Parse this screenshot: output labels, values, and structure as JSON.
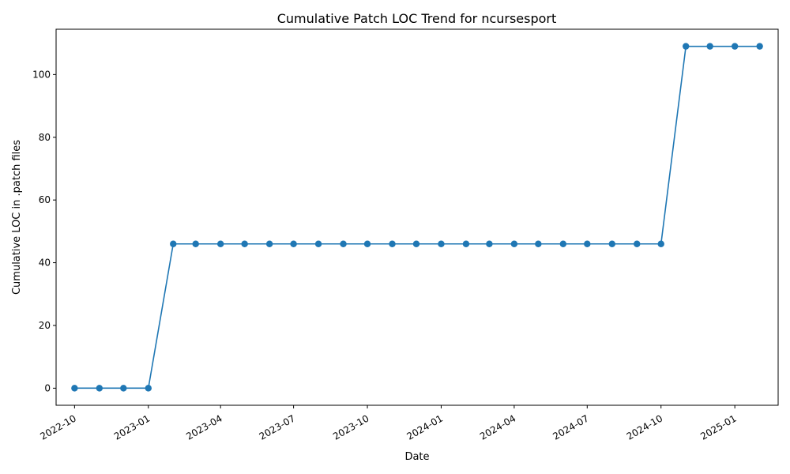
{
  "chart_data": {
    "type": "line",
    "title": "Cumulative Patch LOC Trend for ncursesport",
    "xlabel": "Date",
    "ylabel": "Cumulative LOC in .patch files",
    "x_ticks": [
      "2022-10",
      "2023-01",
      "2023-04",
      "2023-07",
      "2023-10",
      "2024-01",
      "2024-04",
      "2024-07",
      "2024-10",
      "2025-01"
    ],
    "y_ticks": [
      0,
      20,
      40,
      60,
      80,
      100
    ],
    "ylim": [
      -5.45,
      114.45
    ],
    "xlim": [
      "2022-09-08",
      "2025-02-24"
    ],
    "grid": false,
    "line_color": "#1f77b4",
    "series": [
      {
        "x": [
          "2022-10-01",
          "2022-11-01",
          "2022-12-01",
          "2023-01-01",
          "2023-02-01",
          "2023-03-01",
          "2023-04-01",
          "2023-05-01",
          "2023-06-01",
          "2023-07-01",
          "2023-08-01",
          "2023-09-01",
          "2023-10-01",
          "2023-11-01",
          "2023-12-01",
          "2024-01-01",
          "2024-02-01",
          "2024-03-01",
          "2024-04-01",
          "2024-05-01",
          "2024-06-01",
          "2024-07-01",
          "2024-08-01",
          "2024-09-01",
          "2024-10-01",
          "2024-11-01",
          "2024-12-01",
          "2025-01-01",
          "2025-02-01"
        ],
        "values": [
          0,
          0,
          0,
          0,
          46,
          46,
          46,
          46,
          46,
          46,
          46,
          46,
          46,
          46,
          46,
          46,
          46,
          46,
          46,
          46,
          46,
          46,
          46,
          46,
          46,
          109,
          109,
          109,
          109
        ]
      }
    ]
  }
}
